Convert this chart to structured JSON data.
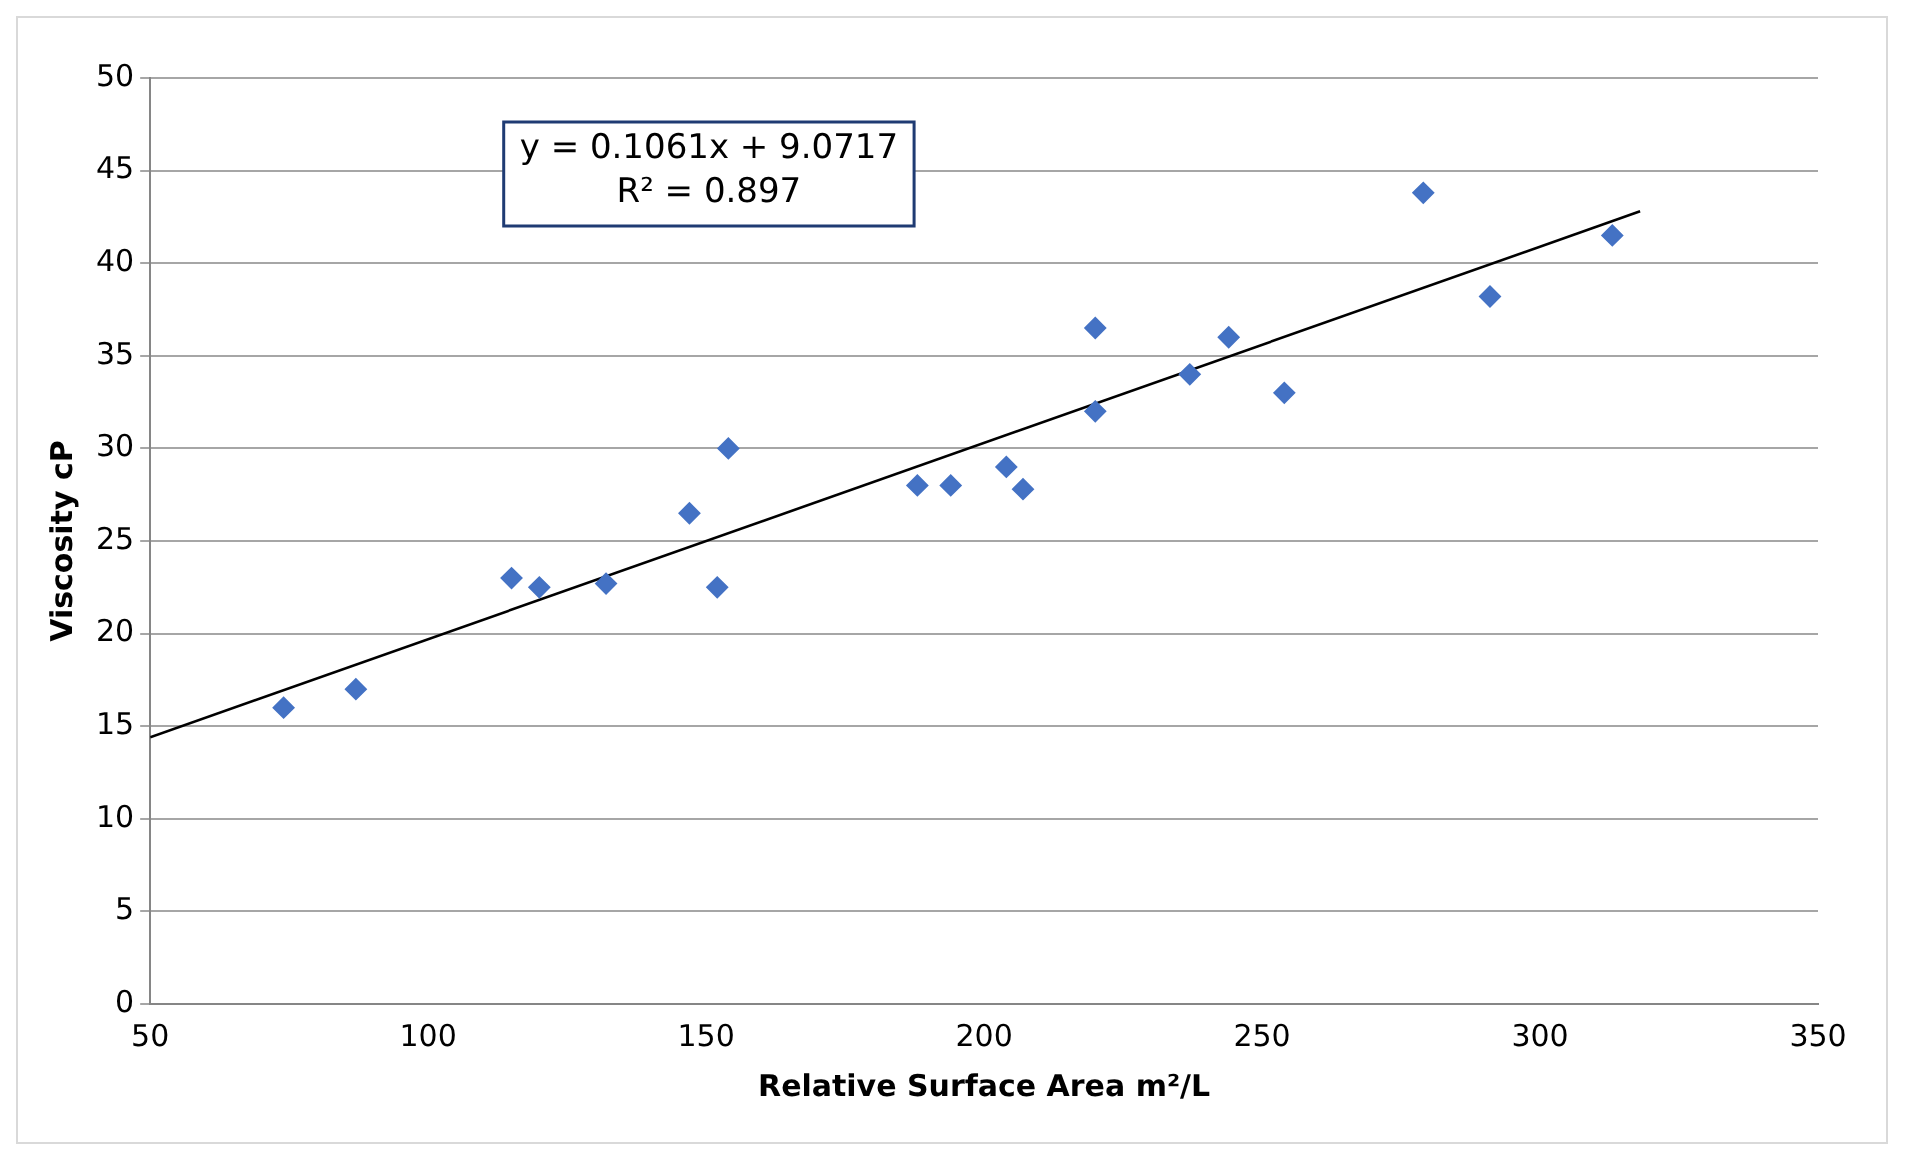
{
  "chart_data": {
    "type": "scatter",
    "xlabel": "Relative Surface Area m²/L",
    "ylabel": "Viscosity cP",
    "xlim": [
      50,
      350
    ],
    "xticks": [
      50,
      100,
      150,
      200,
      250,
      300,
      350
    ],
    "ylim": [
      0,
      50
    ],
    "yticks": [
      0,
      5,
      10,
      15,
      20,
      25,
      30,
      35,
      40,
      45,
      50
    ],
    "grid": "y",
    "legend": false,
    "marker": "diamond",
    "annotations": [
      "y = 0.1061x + 9.0717\nR² = 0.897"
    ],
    "series": [
      {
        "type": "scatter",
        "color": "#4472c4",
        "x": [
          74,
          87,
          115,
          120,
          132,
          147,
          152,
          154,
          188,
          194,
          204,
          207,
          220,
          220,
          237,
          244,
          254,
          279,
          291,
          313
        ],
        "values": [
          16,
          17,
          23,
          22.5,
          22.7,
          26.5,
          22.5,
          30,
          28,
          28,
          29,
          27.8,
          36.5,
          32,
          34,
          36,
          33,
          43.8,
          38.2,
          41.5
        ]
      },
      {
        "type": "line",
        "color": "#000000",
        "marker": "none",
        "line_style": "solid",
        "x": [
          50,
          318
        ],
        "values": [
          14.4,
          42.8
        ]
      }
    ]
  }
}
